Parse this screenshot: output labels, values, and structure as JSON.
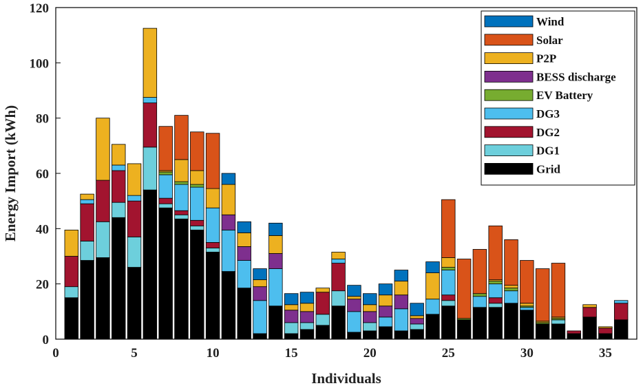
{
  "chart_data": {
    "type": "bar",
    "stacked": true,
    "title": "",
    "xlabel": "Individuals",
    "ylabel": "Energy Import (kWh)",
    "xlim": [
      0,
      37
    ],
    "ylim": [
      0,
      120
    ],
    "xticks": [
      "0",
      "5",
      "10",
      "15",
      "20",
      "25",
      "30",
      "35"
    ],
    "yticks": [
      "0",
      "20",
      "40",
      "60",
      "80",
      "100",
      "120"
    ],
    "grid": false,
    "legend_position": "top-right",
    "categories": [
      1,
      2,
      3,
      4,
      5,
      6,
      7,
      8,
      9,
      10,
      11,
      12,
      13,
      14,
      15,
      16,
      17,
      18,
      19,
      20,
      21,
      22,
      23,
      24,
      25,
      26,
      27,
      28,
      29,
      30,
      31,
      32,
      33,
      34,
      35,
      36
    ],
    "series": [
      {
        "name": "Grid",
        "color": "#000000",
        "values": [
          15,
          28.5,
          29.5,
          44,
          26,
          54,
          47.5,
          43.5,
          39.5,
          31.5,
          24.5,
          18.5,
          2,
          12,
          2,
          3.5,
          5,
          12,
          2.5,
          3,
          4.5,
          3,
          3.5,
          9,
          12,
          7,
          11.5,
          11.5,
          13,
          10.5,
          5.5,
          5.5,
          2,
          8,
          2,
          7
        ]
      },
      {
        "name": "DG1",
        "color": "#6DCFDC",
        "values": [
          4,
          7,
          13,
          5.5,
          11,
          15.5,
          1.5,
          1.5,
          1.5,
          1.5,
          0,
          0,
          0,
          0,
          4,
          2.5,
          4,
          5.5,
          0,
          3,
          0,
          0,
          2,
          0,
          2,
          0,
          0,
          1.5,
          0,
          0,
          0,
          1.5,
          0,
          0,
          0,
          0
        ]
      },
      {
        "name": "DG2",
        "color": "#A2142F",
        "values": [
          11,
          13.5,
          15,
          11.5,
          13,
          16,
          2,
          1.5,
          2,
          2,
          0,
          0,
          0,
          0,
          0,
          0,
          8,
          10,
          0,
          0,
          0,
          0,
          0,
          0,
          2,
          0,
          0,
          2,
          0,
          0,
          0,
          0,
          1,
          3.5,
          2,
          6
        ]
      },
      {
        "name": "DG3",
        "color": "#4DBEEE",
        "values": [
          0,
          1.5,
          0,
          2,
          2,
          2,
          8.5,
          9.5,
          12,
          12.5,
          15,
          10,
          12,
          13.5,
          0,
          0,
          0,
          1.5,
          7.5,
          0,
          3.5,
          8,
          0,
          5.5,
          9,
          0,
          4,
          5,
          4.5,
          1,
          0,
          0,
          0,
          0,
          0,
          1
        ]
      },
      {
        "name": "EV Battery",
        "color": "#77AC30",
        "values": [
          0,
          0,
          0,
          0,
          0,
          0,
          1,
          1,
          1,
          0,
          0,
          0,
          0,
          0,
          0,
          0,
          0,
          0,
          0,
          0,
          0,
          0,
          0,
          0,
          1,
          0.5,
          1,
          1,
          1,
          0.5,
          0.5,
          0.5,
          0,
          0,
          0,
          0
        ]
      },
      {
        "name": "BESS discharge",
        "color": "#7E2F8E",
        "values": [
          0,
          0,
          0,
          0,
          0,
          0,
          0,
          0,
          0,
          0,
          5.5,
          5,
          5,
          5.5,
          4.5,
          4,
          0,
          0,
          4.5,
          4,
          4,
          5,
          2,
          0,
          0,
          0,
          0,
          0,
          0,
          0,
          0,
          0,
          0,
          0,
          0,
          0
        ]
      },
      {
        "name": "P2P",
        "color": "#EDB120",
        "values": [
          9.5,
          2,
          22.5,
          7.5,
          11.5,
          25,
          0.5,
          8,
          5,
          7,
          11,
          5,
          2.5,
          6.5,
          2,
          3,
          1.5,
          2.5,
          1,
          2.5,
          4,
          5,
          1,
          9.5,
          3.5,
          0,
          0,
          0.5,
          1,
          1,
          0.5,
          0.5,
          0,
          1,
          0.5,
          0
        ]
      },
      {
        "name": "Solar",
        "color": "#D95319",
        "values": [
          0,
          0,
          0,
          0,
          0,
          0,
          16,
          16,
          14,
          20,
          0,
          0,
          0,
          0,
          0,
          0,
          0,
          0,
          0,
          0,
          0,
          0,
          0,
          0,
          21,
          21.5,
          16,
          19.5,
          16.5,
          15.5,
          19,
          19.5,
          0,
          0,
          0,
          0
        ]
      },
      {
        "name": "Wind",
        "color": "#0072BD",
        "values": [
          0,
          0,
          0,
          0,
          0,
          0,
          0,
          0,
          0,
          0,
          4,
          4,
          4,
          4.5,
          4,
          4,
          0,
          0,
          4,
          4,
          4,
          4,
          4.5,
          4,
          0,
          0,
          0,
          0,
          0,
          0,
          0,
          0,
          0,
          0,
          0,
          0
        ]
      }
    ]
  }
}
